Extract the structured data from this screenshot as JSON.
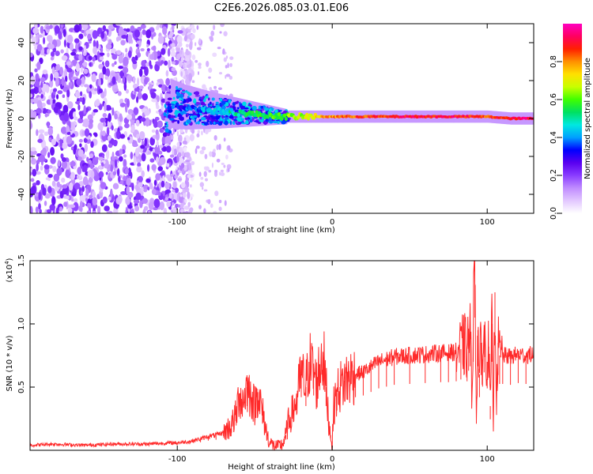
{
  "title": "C2E6.2026.085.03.01.E06",
  "chart_data": [
    {
      "type": "heatmap",
      "name": "spectrogram",
      "xlabel": "Height of straight line (km)",
      "ylabel": "Frequency (Hz)",
      "xlim": [
        -195,
        130
      ],
      "ylim": [
        -50,
        50
      ],
      "xticks": [
        -100,
        0,
        100
      ],
      "xtick_labels": [
        "-100",
        "0",
        "100"
      ],
      "yticks": [
        -40,
        -20,
        0,
        20,
        40
      ],
      "ytick_labels": [
        "-40",
        "-20",
        "0",
        "20",
        "40"
      ],
      "colorbar": {
        "label": "Normalized spectral amplitude",
        "range": [
          0,
          1
        ],
        "ticks": [
          0.0,
          0.2,
          0.4,
          0.6,
          0.8
        ],
        "tick_labels": [
          "0.0",
          "0.2",
          "0.4",
          "0.6",
          "0.8"
        ],
        "stops": [
          "#ffffff",
          "#e2c7ff",
          "#c08cff",
          "#8a3cff",
          "#5a00f0",
          "#0000ff",
          "#00a0ff",
          "#00e8e0",
          "#00e060",
          "#40ff00",
          "#c8ff00",
          "#ffe000",
          "#ff9000",
          "#ff2000",
          "#ff0060",
          "#ff00c0"
        ]
      },
      "ridge": [
        {
          "x": -105,
          "y": 8,
          "amp": 0.25
        },
        {
          "x": -95,
          "y": 6,
          "amp": 0.35
        },
        {
          "x": -85,
          "y": 5,
          "amp": 0.4
        },
        {
          "x": -75,
          "y": 4,
          "amp": 0.45
        },
        {
          "x": -60,
          "y": 3,
          "amp": 0.5
        },
        {
          "x": -45,
          "y": 2,
          "amp": 0.55
        },
        {
          "x": -30,
          "y": 1,
          "amp": 0.6
        },
        {
          "x": -15,
          "y": 1,
          "amp": 0.7
        },
        {
          "x": 0,
          "y": 1,
          "amp": 0.8
        },
        {
          "x": 20,
          "y": 1,
          "amp": 0.85
        },
        {
          "x": 50,
          "y": 1,
          "amp": 0.9
        },
        {
          "x": 80,
          "y": 1,
          "amp": 0.9
        },
        {
          "x": 100,
          "y": 1,
          "amp": 0.85
        },
        {
          "x": 115,
          "y": 0,
          "amp": 0.9
        },
        {
          "x": 130,
          "y": 0,
          "amp": 0.95
        }
      ]
    },
    {
      "type": "line",
      "name": "snr",
      "xlabel": "Height of straight line (km)",
      "ylabel": "SNR (10 * v/v)",
      "multiplier_label": "(x10",
      "multiplier_exp": "4",
      "multiplier_close": ")",
      "xlim": [
        -195,
        130
      ],
      "ylim": [
        0,
        1.5
      ],
      "xticks": [
        -100,
        0,
        100
      ],
      "xtick_labels": [
        "-100",
        "0",
        "100"
      ],
      "yticks": [
        0.5,
        1.0,
        1.5
      ],
      "ytick_labels": [
        "0.5",
        "1.0",
        "1.5"
      ],
      "color": "#ff2a2a",
      "series": [
        {
          "name": "SNR",
          "x": [
            -195,
            -180,
            -160,
            -140,
            -120,
            -100,
            -92,
            -85,
            -80,
            -75,
            -70,
            -65,
            -62,
            -60,
            -58,
            -55,
            -52,
            -50,
            -48,
            -45,
            -42,
            -40,
            -38,
            -35,
            -32,
            -30,
            -28,
            -25,
            -23,
            -20,
            -17,
            -15,
            -12,
            -10,
            -8,
            -6,
            -4,
            -2,
            -1,
            0,
            1,
            3,
            5,
            8,
            10,
            15,
            20,
            25,
            30,
            35,
            40,
            50,
            60,
            70,
            75,
            80,
            83,
            85,
            87,
            88,
            89,
            90,
            91,
            92,
            93,
            94,
            95,
            96,
            97,
            98,
            100,
            101,
            102,
            103,
            104,
            105,
            106,
            107,
            108,
            110,
            115,
            120,
            125,
            130
          ],
          "y": [
            0.04,
            0.05,
            0.04,
            0.05,
            0.05,
            0.06,
            0.07,
            0.09,
            0.11,
            0.12,
            0.14,
            0.2,
            0.28,
            0.45,
            0.38,
            0.5,
            0.42,
            0.35,
            0.46,
            0.3,
            0.12,
            0.06,
            0.04,
            0.03,
            0.05,
            0.12,
            0.24,
            0.32,
            0.4,
            0.6,
            0.5,
            0.7,
            0.62,
            0.52,
            0.68,
            0.78,
            0.5,
            0.2,
            0.12,
            0.05,
            0.35,
            0.45,
            0.5,
            0.55,
            0.57,
            0.6,
            0.62,
            0.66,
            0.7,
            0.72,
            0.74,
            0.75,
            0.76,
            0.77,
            0.77,
            0.78,
            0.8,
            0.85,
            0.78,
            0.9,
            0.95,
            0.5,
            1.0,
            1.5,
            0.3,
            0.95,
            0.6,
            0.85,
            0.72,
            0.88,
            0.7,
            0.82,
            0.35,
            1.0,
            0.22,
            1.25,
            0.4,
            0.85,
            0.75,
            0.75,
            0.74,
            0.76,
            0.75,
            0.76
          ]
        }
      ]
    }
  ]
}
